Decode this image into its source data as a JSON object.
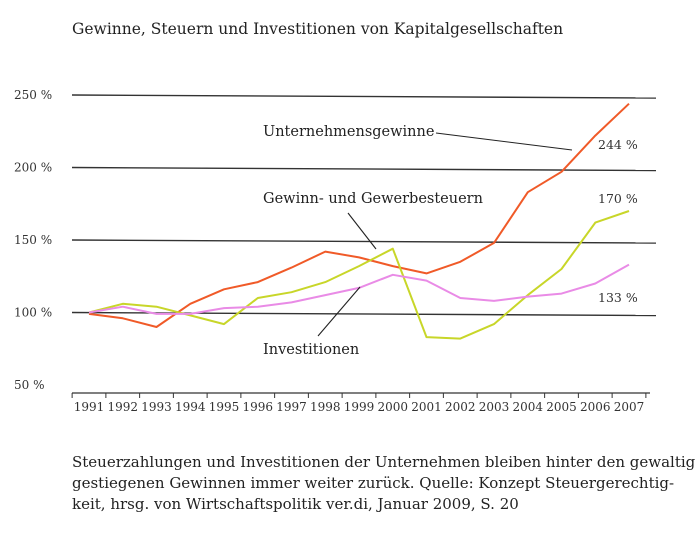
{
  "title": "Gewinne, Steuern und Investitionen von Kapitalgesellschaften",
  "caption": [
    "Steuerzahlungen und Investitionen der Unternehmen bleiben hinter den gewaltig",
    "gestiegenen Gewinnen immer weiter zurück. Quelle: Konzept Steuergerechtig-",
    "keit, hrsg. von Wirtschaftspolitik ver.di, Januar 2009, S. 20"
  ],
  "chart_data": {
    "type": "line",
    "title": "Gewinne, Steuern und Investitionen von Kapitalgesellschaften",
    "xlabel": "",
    "ylabel": "",
    "x": [
      1991,
      1992,
      1993,
      1994,
      1995,
      1996,
      1997,
      1998,
      1999,
      2000,
      2001,
      2002,
      2003,
      2004,
      2005,
      2006,
      2007
    ],
    "x_tick_labels": [
      "1991",
      "1992",
      "1993",
      "1994",
      "1995",
      "1996",
      "1997",
      "1998",
      "1999",
      "2000",
      "2001",
      "2002",
      "2003",
      "2004",
      "2005",
      "2006",
      "2007"
    ],
    "y_ticks": [
      50,
      100,
      150,
      200,
      250
    ],
    "y_tick_labels": [
      "50 %",
      "100 %",
      "150 %",
      "200 %",
      "250 %"
    ],
    "ylim": [
      50,
      250
    ],
    "grid": "horizontal",
    "series": [
      {
        "name": "Unternehmensgewinne",
        "color": "#f05a28",
        "values": [
          99,
          96,
          90,
          106,
          116,
          121,
          131,
          142,
          138,
          132,
          127,
          135,
          148,
          183,
          197,
          222,
          244
        ],
        "end_label": "244 %"
      },
      {
        "name": "Gewinn- und Gewerbesteuern",
        "color": "#c8d629",
        "values": [
          100,
          106,
          104,
          98,
          92,
          110,
          114,
          121,
          132,
          144,
          83,
          82,
          92,
          112,
          130,
          162,
          170
        ],
        "end_label": "170 %"
      },
      {
        "name": "Investitionen",
        "color": "#e98be6",
        "values": [
          100,
          104,
          99,
          99,
          103,
          104,
          107,
          112,
          117,
          126,
          122,
          110,
          108,
          111,
          113,
          120,
          133
        ],
        "end_label": "133 %"
      }
    ]
  }
}
